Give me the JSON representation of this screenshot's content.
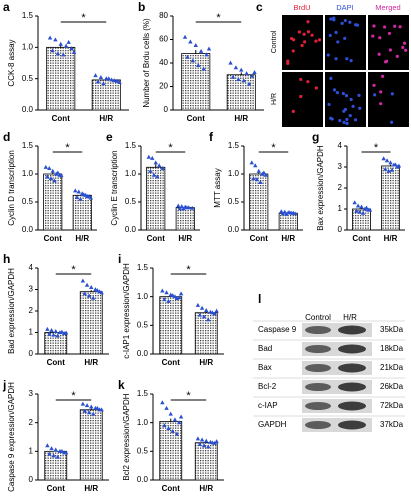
{
  "chart_data": [
    {
      "type": "bar",
      "panel": "a",
      "ylabel": "CCK-8 assay",
      "categories": [
        "Cont",
        "H/R"
      ],
      "values": [
        1.0,
        0.48
      ],
      "errors": [
        0.04,
        0.02
      ],
      "points": [
        [
          1.15,
          1.12,
          1.05,
          1.02,
          0.98,
          0.95,
          0.9,
          0.88,
          1.08,
          0.92
        ],
        [
          0.55,
          0.52,
          0.5,
          0.48,
          0.46,
          0.45,
          0.42,
          0.5,
          0.47,
          0.44
        ]
      ],
      "ylim": [
        0,
        1.5
      ],
      "yticks": [
        {
          "value": 0,
          "label": "0.0"
        },
        0.5,
        {
          "value": 1,
          "label": "1.0"
        },
        1.5
      ],
      "sig": "*",
      "point_color": "#2a4fd1"
    },
    {
      "type": "bar",
      "panel": "b",
      "ylabel": "Number of Brdu cells (%)",
      "categories": [
        "Cont",
        "H/R"
      ],
      "values": [
        48,
        30
      ],
      "errors": [
        3,
        2
      ],
      "points": [
        [
          62,
          58,
          55,
          50,
          47,
          45,
          42,
          38,
          35,
          52
        ],
        [
          40,
          36,
          34,
          31,
          29,
          28,
          26,
          25,
          22,
          32
        ]
      ],
      "ylim": [
        0,
        80
      ],
      "yticks": [
        0,
        20,
        40,
        60,
        80
      ],
      "sig": "*",
      "point_color": "#2a4fd1"
    },
    {
      "type": "bar",
      "panel": "d",
      "ylabel": "Cyclin D transcription",
      "categories": [
        "Cont",
        "H/R"
      ],
      "values": [
        1.0,
        0.62
      ],
      "errors": [
        0.03,
        0.02
      ],
      "points": [
        [
          1.12,
          1.1,
          1.05,
          1.0,
          0.98,
          0.95,
          0.92,
          0.88,
          1.02,
          0.97
        ],
        [
          0.7,
          0.68,
          0.65,
          0.62,
          0.6,
          0.58,
          0.55,
          0.63,
          0.6,
          0.57
        ]
      ],
      "ylim": [
        0,
        1.5
      ],
      "yticks": [
        {
          "value": 0,
          "label": "0.0"
        },
        0.5,
        {
          "value": 1,
          "label": "1.0"
        },
        1.5
      ],
      "sig": "*",
      "point_color": "#2a4fd1"
    },
    {
      "type": "bar",
      "panel": "e",
      "ylabel": "Cyclin E transcription",
      "categories": [
        "Cont",
        "H/R"
      ],
      "values": [
        1.12,
        0.4
      ],
      "errors": [
        0.05,
        0.01
      ],
      "points": [
        [
          1.3,
          1.28,
          1.2,
          1.15,
          1.1,
          1.05,
          0.98,
          0.95
        ],
        [
          0.43,
          0.42,
          0.41,
          0.4,
          0.39,
          0.38,
          0.38,
          0.4
        ]
      ],
      "ylim": [
        0,
        1.5
      ],
      "yticks": [
        {
          "value": 0,
          "label": "0.0"
        },
        0.5,
        {
          "value": 1,
          "label": "1.0"
        },
        1.5
      ],
      "sig": "*",
      "point_color": "#2a4fd1"
    },
    {
      "type": "bar",
      "panel": "f",
      "ylabel": "MTT assay",
      "categories": [
        "Cont",
        "H/R"
      ],
      "values": [
        1.0,
        0.3
      ],
      "errors": [
        0.04,
        0.01
      ],
      "points": [
        [
          1.2,
          1.15,
          1.05,
          1.0,
          0.98,
          0.92,
          0.9,
          0.85,
          1.02
        ],
        [
          0.33,
          0.32,
          0.31,
          0.3,
          0.29,
          0.29,
          0.28,
          0.31,
          0.3
        ]
      ],
      "ylim": [
        0,
        1.5
      ],
      "yticks": [
        {
          "value": 0,
          "label": "0.0"
        },
        0.5,
        {
          "value": 1,
          "label": "1.0"
        },
        1.5
      ],
      "sig": "*",
      "point_color": "#2a4fd1"
    },
    {
      "type": "bar",
      "panel": "g",
      "ylabel": "Bax expression/GAPDH",
      "categories": [
        "Cont",
        "H/R"
      ],
      "values": [
        1.0,
        3.05
      ],
      "errors": [
        0.05,
        0.06
      ],
      "points": [
        [
          1.3,
          1.15,
          1.1,
          1.0,
          0.95,
          0.9,
          0.85,
          0.8,
          1.05,
          0.95
        ],
        [
          3.4,
          3.3,
          3.2,
          3.1,
          3.0,
          2.9,
          2.8,
          2.85,
          3.1,
          3.05
        ]
      ],
      "ylim": [
        0,
        4
      ],
      "yticks": [
        0,
        1,
        2,
        3,
        4
      ],
      "sig": "*",
      "point_color": "#2a4fd1"
    },
    {
      "type": "bar",
      "panel": "h",
      "ylabel": "Bad expression/GAPDH",
      "categories": [
        "Cont",
        "H/R"
      ],
      "values": [
        1.0,
        2.9
      ],
      "errors": [
        0.03,
        0.07
      ],
      "points": [
        [
          1.15,
          1.1,
          1.05,
          1.0,
          0.95,
          0.92,
          0.88,
          0.85,
          1.02,
          0.98
        ],
        [
          3.4,
          3.2,
          3.1,
          3.0,
          2.9,
          2.8,
          2.7,
          2.6,
          2.95,
          2.85
        ]
      ],
      "ylim": [
        0,
        4
      ],
      "yticks": [
        0,
        1,
        2,
        3,
        4
      ],
      "sig": "*",
      "point_color": "#2a4fd1"
    },
    {
      "type": "bar",
      "panel": "i",
      "ylabel": "c-IAP1 expression/GAPDH",
      "categories": [
        "Cont",
        "H/R"
      ],
      "values": [
        1.0,
        0.72
      ],
      "errors": [
        0.02,
        0.03
      ],
      "points": [
        [
          1.1,
          1.07,
          1.03,
          1.0,
          0.98,
          0.95,
          0.92,
          1.02,
          0.97,
          1.05
        ],
        [
          0.85,
          0.8,
          0.76,
          0.73,
          0.7,
          0.68,
          0.65,
          0.6,
          0.72,
          0.75
        ]
      ],
      "ylim": [
        0,
        1.5
      ],
      "yticks": [
        {
          "value": 0,
          "label": "0.0"
        },
        0.5,
        {
          "value": 1,
          "label": "1.0"
        },
        1.5
      ],
      "sig": "*",
      "point_color": "#2a4fd1"
    },
    {
      "type": "bar",
      "panel": "j",
      "ylabel": "Caspase 9 expression/GAPDH",
      "categories": [
        "Cont",
        "H/R"
      ],
      "values": [
        1.0,
        2.45
      ],
      "errors": [
        0.05,
        0.04
      ],
      "points": [
        [
          1.2,
          1.1,
          1.05,
          1.0,
          0.95,
          0.9,
          0.85,
          0.8,
          1.0,
          0.95
        ],
        [
          2.65,
          2.6,
          2.55,
          2.5,
          2.45,
          2.4,
          2.35,
          2.3,
          2.5,
          2.45
        ]
      ],
      "ylim": [
        0,
        3
      ],
      "yticks": [
        0,
        1,
        2,
        3
      ],
      "sig": "*",
      "point_color": "#2a4fd1"
    },
    {
      "type": "bar",
      "panel": "k",
      "ylabel": "Bcl2 expression/GAPDH",
      "categories": [
        "Cont",
        "H/R"
      ],
      "values": [
        1.02,
        0.65
      ],
      "errors": [
        0.05,
        0.02
      ],
      "points": [
        [
          1.35,
          1.25,
          1.15,
          1.05,
          1.0,
          0.95,
          0.9,
          0.85,
          0.8,
          1.1
        ],
        [
          0.72,
          0.7,
          0.68,
          0.66,
          0.64,
          0.62,
          0.6,
          0.58,
          0.65,
          0.67
        ]
      ],
      "ylim": [
        0,
        1.5
      ],
      "yticks": [
        {
          "value": 0,
          "label": "0.0"
        },
        0.5,
        {
          "value": 1,
          "label": "1.0"
        },
        1.5
      ],
      "sig": "*",
      "point_color": "#2a4fd1"
    }
  ],
  "image_panel": {
    "panel": "c",
    "columns": [
      "BrdU",
      "DAPI",
      "Merged"
    ],
    "rows": [
      "Control",
      "H/R"
    ]
  },
  "blot": {
    "panel": "l",
    "lanes": [
      "Control",
      "H/R"
    ],
    "proteins": [
      "Caspase 9",
      "Bad",
      "Bax",
      "Bcl-2",
      "c-IAP",
      "GAPDH"
    ],
    "sizes": [
      "35kDa",
      "18kDa",
      "21kDa",
      "26kDa",
      "72kDa",
      "37kDa"
    ]
  }
}
